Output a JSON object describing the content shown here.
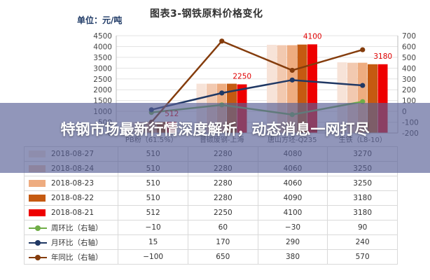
{
  "unit_label": "单位：元/吨",
  "banner_headline": "特钢市场最新行情深度解析，动态消息一网打尽",
  "chart_data": {
    "type": "bar",
    "title": "图表3-钢铁原料价格变化",
    "categories": [
      "PB粉（61.5%）",
      "普碳废钢-上海",
      "唐山方坯-Q235",
      "生铁（L8-10）"
    ],
    "y_left_ticks": [
      "4500",
      "4000",
      "3500",
      "3000",
      "2500",
      "2000",
      "1500",
      "1000",
      "500",
      "0"
    ],
    "y_right_ticks": [
      "700",
      "600",
      "500",
      "400",
      "300",
      "200",
      "100",
      "0",
      "-100",
      "-200"
    ],
    "ylim_left": [
      0,
      4500
    ],
    "ylim_right": [
      -200,
      700
    ],
    "series": [
      {
        "name": "2018-08-27",
        "kind": "bar",
        "axis": "left",
        "color": "#f7e3d8",
        "values": [
          510,
          2280,
          4080,
          3270
        ],
        "labels": [
          "510",
          "2280",
          "4080",
          "3270"
        ]
      },
      {
        "name": "2018-08-24",
        "kind": "bar",
        "axis": "left",
        "color": "#f2c9b0",
        "values": [
          510,
          2280,
          4060,
          3250
        ],
        "labels": [
          "510",
          "2280",
          "4060",
          "3250"
        ]
      },
      {
        "name": "2018-08-23",
        "kind": "bar",
        "axis": "left",
        "color": "#eeac80",
        "values": [
          510,
          2280,
          4060,
          3250
        ],
        "labels": [
          "510",
          "2280",
          "4060",
          "3250"
        ]
      },
      {
        "name": "2018-08-22",
        "kind": "bar",
        "axis": "left",
        "color": "#c55a11",
        "values": [
          510,
          2280,
          4090,
          3180
        ],
        "labels": [
          "510",
          "2280",
          "4090",
          "3180"
        ]
      },
      {
        "name": "2018-08-21",
        "kind": "bar",
        "axis": "left",
        "color": "#ee0000",
        "values": [
          512,
          2250,
          4100,
          3180
        ],
        "labels": [
          "512",
          "2250",
          "4100",
          "3180"
        ]
      },
      {
        "name": "周环比（右轴）",
        "kind": "line",
        "axis": "right",
        "color": "#70ad47",
        "values": [
          -10,
          60,
          -30,
          90
        ],
        "labels": [
          "−10",
          "60",
          "−30",
          "90"
        ]
      },
      {
        "name": "月环比（右轴）",
        "kind": "line",
        "axis": "right",
        "color": "#203864",
        "values": [
          15,
          170,
          290,
          240
        ],
        "labels": [
          "15",
          "170",
          "290",
          "240"
        ]
      },
      {
        "name": "年同比（右轴）",
        "kind": "line",
        "axis": "right",
        "color": "#843c0c",
        "values": [
          -100,
          650,
          380,
          570
        ],
        "labels": [
          "−100",
          "650",
          "380",
          "570"
        ]
      }
    ],
    "data_labels": [
      {
        "series": 4,
        "index": 0,
        "text": "512"
      },
      {
        "series": 4,
        "index": 1,
        "text": "2250"
      },
      {
        "series": 4,
        "index": 2,
        "text": "4100"
      },
      {
        "series": 4,
        "index": 3,
        "text": "3180"
      }
    ]
  }
}
